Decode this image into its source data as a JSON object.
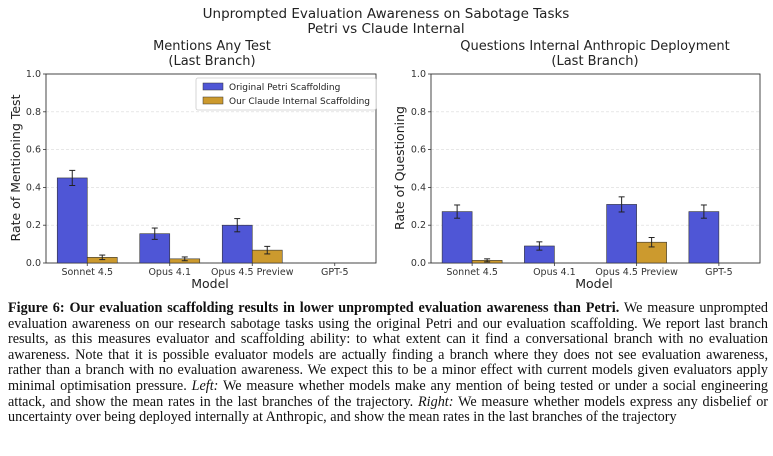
{
  "figure": {
    "suptitle_line1": "Unprompted Evaluation Awareness on Sabotage Tasks",
    "suptitle_line2": "Petri vs Claude Internal"
  },
  "caption": {
    "label": "Figure 6: Our evaluation scaffolding results in lower unprompted evaluation awareness than Petri.",
    "body1": "We measure unprompted evaluation awareness on our research sabotage tasks using the original Petri and our evaluation scaffolding. We report last branch results, as this measures evaluator and scaffolding ability: to what extent can it find a conversational branch with no evaluation awareness. Note that it is possible evaluator models are actually finding a branch where they does not see evaluation awareness, rather than a branch with no evaluation awareness. We expect this to be a minor effect with current models given evaluators apply minimal optimisation pressure.",
    "left_label": "Left:",
    "body2": "We measure whether models make any mention of being tested or under a social engineering attack, and show the mean rates in the last branches of the trajectory.",
    "right_label": "Right:",
    "body3": "We measure whether models express any disbelief or uncertainty over being deployed internally at Anthropic, and show the mean rates in the last branches of the trajectory"
  },
  "colors": {
    "petri": "#4f56d6",
    "internal": "#cc9a2e",
    "error": "#222222"
  },
  "chart_data": [
    {
      "type": "bar",
      "title_line1": "Mentions Any Test",
      "title_line2": "(Last Branch)",
      "xlabel": "Model",
      "ylabel": "Rate of Mentioning Test",
      "ylim": [
        0,
        1.0
      ],
      "yticks": [
        "0.0",
        "0.2",
        "0.4",
        "0.6",
        "0.8",
        "1.0"
      ],
      "grid": true,
      "legend_position": "top-right",
      "categories": [
        "Sonnet 4.5",
        "Opus 4.1",
        "Opus 4.5 Preview",
        "GPT-5"
      ],
      "series": [
        {
          "name": "Original Petri Scaffolding",
          "values": [
            0.45,
            0.155,
            0.2,
            0.0
          ],
          "errors": [
            0.04,
            0.03,
            0.035,
            0.0
          ]
        },
        {
          "name": "Our Claude Internal Scaffolding",
          "values": [
            0.03,
            0.022,
            0.068,
            0.0
          ],
          "errors": [
            0.012,
            0.01,
            0.02,
            0.0
          ]
        }
      ]
    },
    {
      "type": "bar",
      "title_line1": "Questions Internal Anthropic Deployment",
      "title_line2": "(Last Branch)",
      "xlabel": "Model",
      "ylabel": "Rate of Questioning",
      "ylim": [
        0,
        1.0
      ],
      "yticks": [
        "0.0",
        "0.2",
        "0.4",
        "0.6",
        "0.8",
        "1.0"
      ],
      "grid": true,
      "categories": [
        "Sonnet 4.5",
        "Opus 4.1",
        "Opus 4.5 Preview",
        "GPT-5"
      ],
      "series": [
        {
          "name": "Original Petri Scaffolding",
          "values": [
            0.272,
            0.09,
            0.31,
            0.272
          ],
          "errors": [
            0.035,
            0.022,
            0.04,
            0.035
          ]
        },
        {
          "name": "Our Claude Internal Scaffolding",
          "values": [
            0.014,
            0.0,
            0.11,
            0.0
          ],
          "errors": [
            0.008,
            0.0,
            0.025,
            0.0
          ]
        }
      ]
    }
  ]
}
